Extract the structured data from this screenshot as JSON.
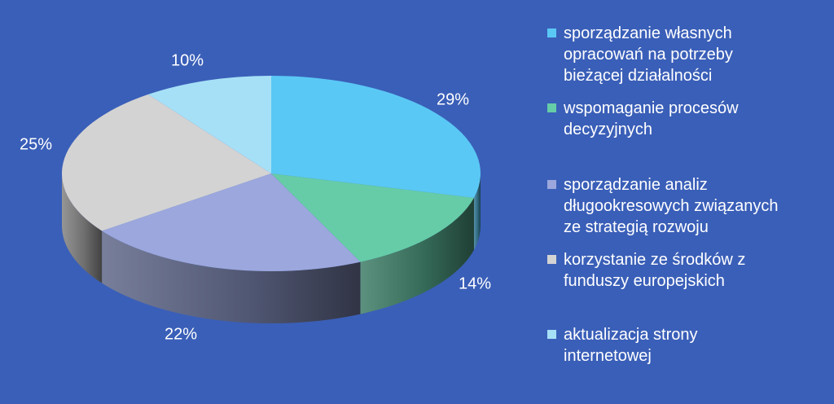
{
  "chart_data": {
    "type": "pie",
    "title": "",
    "slices": [
      {
        "label": "sporządzanie własnych\nopracowań na potrzeby\nbieżącej działalności",
        "value": 29,
        "value_label": "29%",
        "color": "#5ac8f5"
      },
      {
        "label": "wspomaganie procesów\ndecyzyjnych",
        "value": 14,
        "value_label": "14%",
        "color": "#66cca8"
      },
      {
        "label": "sporządzanie analiz\ndługookresowych związanych\nze strategią rozwoju",
        "value": 22,
        "value_label": "22%",
        "color": "#9ba7dd"
      },
      {
        "label": "korzystanie ze środków z\nfunduszy europejskich",
        "value": 25,
        "value_label": "25%",
        "color": "#d3d3d3"
      },
      {
        "label": "aktualizacja strony\ninternetowej",
        "value": 10,
        "value_label": "10%",
        "color": "#a6e0f7"
      }
    ],
    "legend": "right",
    "style": "3d-pie"
  }
}
